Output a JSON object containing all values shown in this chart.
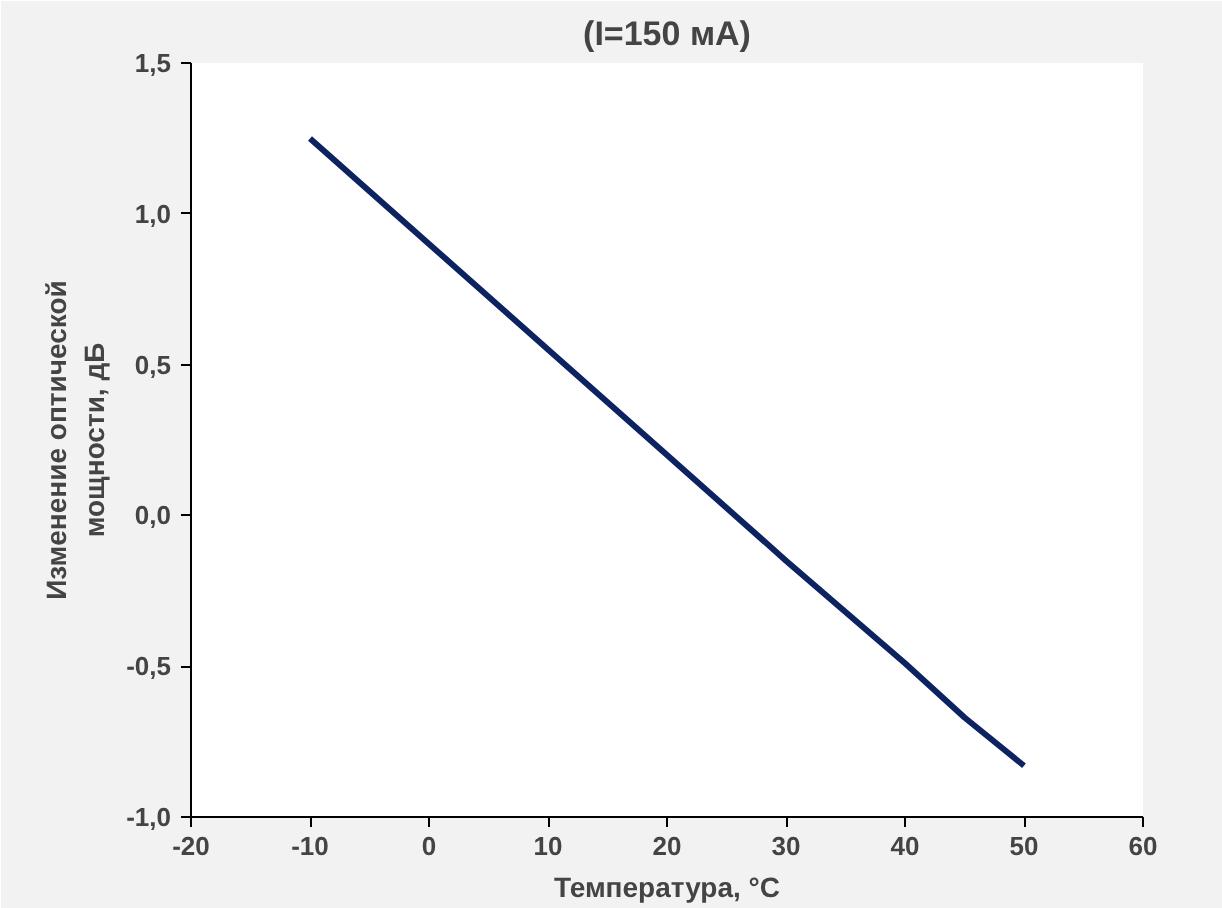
{
  "chart_data": {
    "type": "line",
    "title": "(I=150 мА)",
    "xlabel": "Температура, °C",
    "ylabel": "Изменение оптической мощности, дБ",
    "x": [
      -10,
      0,
      10,
      20,
      30,
      40,
      45,
      50
    ],
    "series": [
      {
        "color": "#0d2260",
        "values": [
          1.25,
          0.9,
          0.55,
          0.2,
          -0.15,
          -0.49,
          -0.67,
          -0.83
        ]
      }
    ],
    "xlim": [
      -20,
      60
    ],
    "xticks": [
      -20,
      -10,
      0,
      10,
      20,
      30,
      40,
      50,
      60
    ],
    "ylim": [
      -1,
      1.5
    ],
    "yticks": [
      {
        "value": -1,
        "label": "-1,0"
      },
      {
        "value": -0.5,
        "label": "-0,5"
      },
      {
        "value": 0,
        "label": "0,0"
      },
      {
        "value": 0.5,
        "label": "0,5"
      },
      {
        "value": 1,
        "label": "1,0"
      },
      {
        "value": 1.5,
        "label": "1,5"
      }
    ],
    "grid": false,
    "marker": "none",
    "line_style": "solid"
  }
}
